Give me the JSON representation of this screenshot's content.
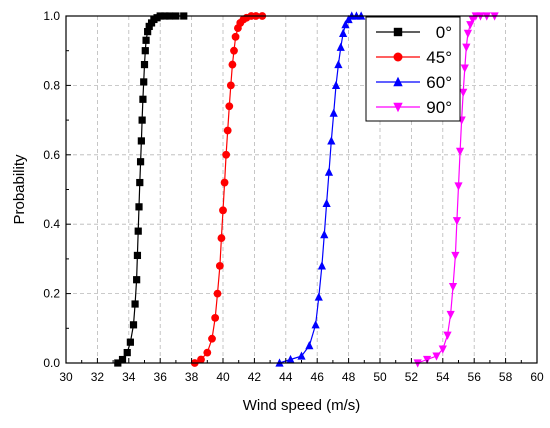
{
  "chart_data": {
    "type": "line",
    "xlabel": "Wind speed (m/s)",
    "ylabel": "Probability",
    "xlim": [
      30,
      60
    ],
    "ylim": [
      0,
      1
    ],
    "xticks": [
      30,
      32,
      34,
      36,
      38,
      40,
      42,
      44,
      46,
      48,
      50,
      52,
      54,
      56,
      58,
      60
    ],
    "yticks": [
      0.0,
      0.2,
      0.4,
      0.6,
      0.8,
      1.0
    ],
    "xtick_labels": [
      "30",
      "32",
      "34",
      "36",
      "38",
      "40",
      "42",
      "44",
      "46",
      "48",
      "50",
      "52",
      "54",
      "56",
      "58",
      "60"
    ],
    "ytick_labels": [
      "0.0",
      "0.2",
      "0.4",
      "0.6",
      "0.8",
      "1.0"
    ],
    "grid": true,
    "legend_position": "top-right",
    "series": [
      {
        "name": "0°",
        "color": "#000000",
        "marker": "square",
        "x": [
          33.3,
          33.6,
          33.9,
          34.1,
          34.3,
          34.4,
          34.5,
          34.55,
          34.6,
          34.65,
          34.7,
          34.75,
          34.8,
          34.85,
          34.9,
          34.95,
          35.0,
          35.05,
          35.1,
          35.2,
          35.3,
          35.45,
          35.6,
          35.8,
          36.0,
          36.3,
          36.6,
          37.0,
          37.5
        ],
        "y": [
          0.0,
          0.01,
          0.03,
          0.06,
          0.11,
          0.17,
          0.24,
          0.31,
          0.38,
          0.45,
          0.52,
          0.58,
          0.64,
          0.7,
          0.76,
          0.81,
          0.86,
          0.9,
          0.93,
          0.955,
          0.97,
          0.98,
          0.99,
          0.995,
          1.0,
          1.0,
          1.0,
          1.0,
          1.0
        ]
      },
      {
        "name": "45°",
        "color": "#ff0000",
        "marker": "circle",
        "x": [
          38.2,
          38.6,
          39.0,
          39.3,
          39.5,
          39.65,
          39.8,
          39.9,
          40.0,
          40.1,
          40.2,
          40.3,
          40.4,
          40.5,
          40.6,
          40.7,
          40.8,
          40.95,
          41.1,
          41.3,
          41.5,
          41.8,
          42.1,
          42.5
        ],
        "y": [
          0.0,
          0.01,
          0.03,
          0.07,
          0.13,
          0.2,
          0.28,
          0.36,
          0.44,
          0.52,
          0.6,
          0.67,
          0.74,
          0.8,
          0.86,
          0.9,
          0.94,
          0.965,
          0.98,
          0.99,
          0.995,
          1.0,
          1.0,
          1.0
        ]
      },
      {
        "name": "60°",
        "color": "#0000ff",
        "marker": "triangle-up",
        "x": [
          43.6,
          44.3,
          45.0,
          45.5,
          45.9,
          46.1,
          46.3,
          46.45,
          46.6,
          46.75,
          46.9,
          47.05,
          47.2,
          47.35,
          47.5,
          47.65,
          47.8,
          48.0,
          48.2,
          48.5,
          48.8
        ],
        "y": [
          0.0,
          0.01,
          0.02,
          0.05,
          0.11,
          0.19,
          0.28,
          0.37,
          0.46,
          0.55,
          0.64,
          0.72,
          0.8,
          0.86,
          0.91,
          0.95,
          0.975,
          0.99,
          1.0,
          1.0,
          1.0
        ]
      },
      {
        "name": "90°",
        "color": "#ff00ff",
        "marker": "triangle-down",
        "x": [
          52.4,
          53.0,
          53.6,
          54.0,
          54.3,
          54.5,
          54.65,
          54.8,
          54.9,
          55.0,
          55.1,
          55.2,
          55.3,
          55.4,
          55.5,
          55.6,
          55.75,
          55.9,
          56.1,
          56.4,
          56.8,
          57.3
        ],
        "y": [
          0.0,
          0.01,
          0.02,
          0.04,
          0.08,
          0.14,
          0.22,
          0.31,
          0.41,
          0.51,
          0.61,
          0.7,
          0.78,
          0.85,
          0.91,
          0.95,
          0.975,
          0.99,
          1.0,
          1.0,
          1.0,
          1.0
        ]
      }
    ]
  }
}
